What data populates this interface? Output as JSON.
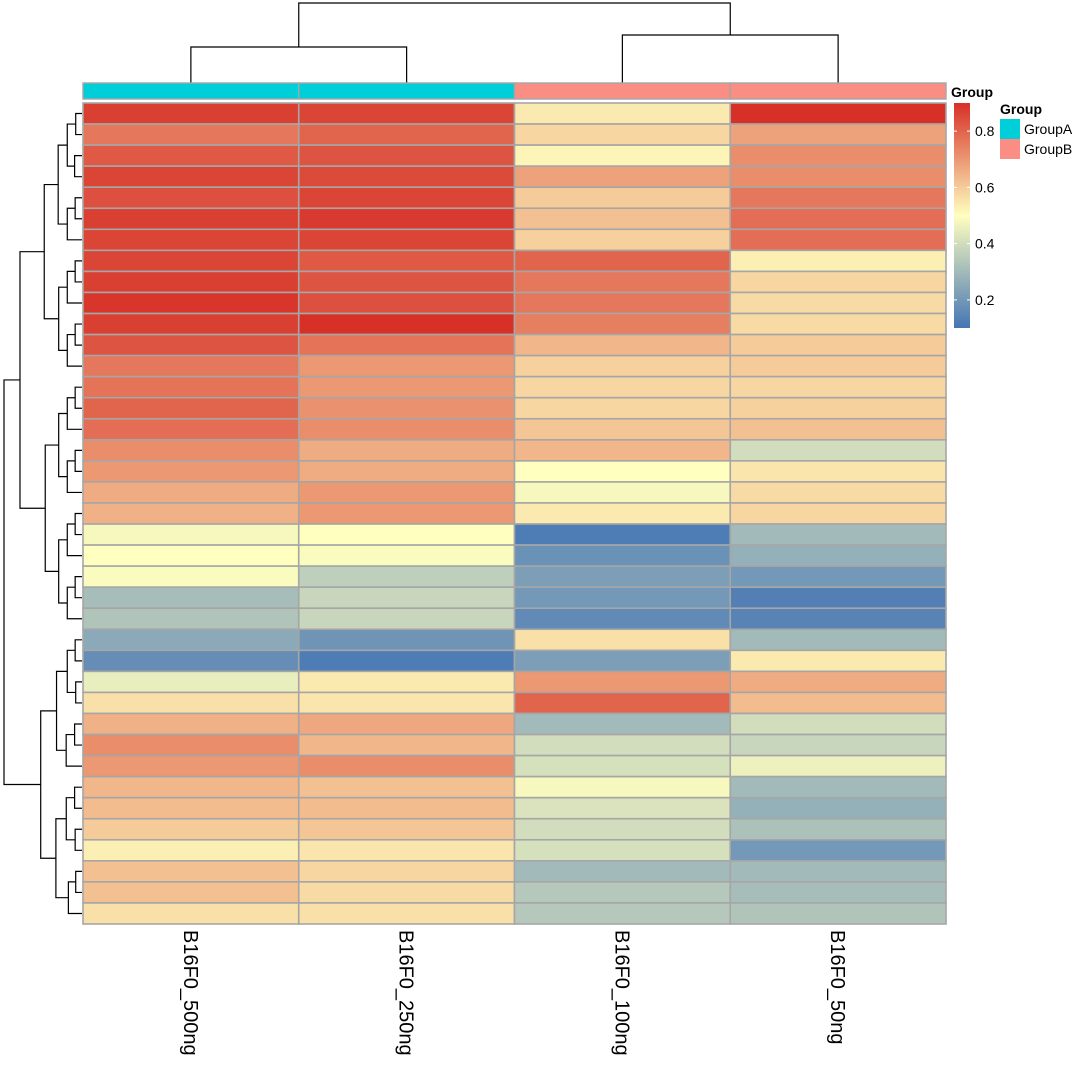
{
  "chart_data": {
    "type": "heatmap",
    "title": "",
    "columns": [
      "B16F0_500ng",
      "B16F0_250ng",
      "B16F0_100ng",
      "B16F0_50ng"
    ],
    "column_groups": [
      "GroupA",
      "GroupA",
      "GroupB",
      "GroupB"
    ],
    "annotation": {
      "track_label": "Group",
      "legend_title": "Group",
      "levels": [
        {
          "name": "GroupA",
          "color": "#00ced8"
        },
        {
          "name": "GroupB",
          "color": "#fa8e84"
        }
      ]
    },
    "color_scale": {
      "min": 0.1,
      "max": 0.9,
      "ticks": [
        0.2,
        0.4,
        0.6,
        0.8
      ],
      "tick_labels": [
        "0.2",
        "0.4",
        "0.6",
        "0.8"
      ],
      "low_color": "#4575b4",
      "mid_color": "#ffffbf",
      "high_color": "#d73027"
    },
    "values": [
      [
        0.87,
        0.86,
        0.54,
        0.9
      ],
      [
        0.76,
        0.8,
        0.58,
        0.68
      ],
      [
        0.82,
        0.83,
        0.52,
        0.72
      ],
      [
        0.86,
        0.85,
        0.68,
        0.72
      ],
      [
        0.84,
        0.86,
        0.6,
        0.76
      ],
      [
        0.87,
        0.88,
        0.62,
        0.78
      ],
      [
        0.86,
        0.86,
        0.59,
        0.78
      ],
      [
        0.86,
        0.82,
        0.8,
        0.53
      ],
      [
        0.87,
        0.83,
        0.76,
        0.58
      ],
      [
        0.89,
        0.84,
        0.76,
        0.57
      ],
      [
        0.87,
        0.9,
        0.75,
        0.57
      ],
      [
        0.83,
        0.77,
        0.64,
        0.6
      ],
      [
        0.76,
        0.7,
        0.59,
        0.6
      ],
      [
        0.77,
        0.7,
        0.58,
        0.58
      ],
      [
        0.8,
        0.71,
        0.58,
        0.59
      ],
      [
        0.78,
        0.72,
        0.61,
        0.62
      ],
      [
        0.72,
        0.66,
        0.64,
        0.4
      ],
      [
        0.7,
        0.66,
        0.5,
        0.55
      ],
      [
        0.66,
        0.7,
        0.48,
        0.57
      ],
      [
        0.65,
        0.7,
        0.54,
        0.58
      ],
      [
        0.48,
        0.5,
        0.12,
        0.3
      ],
      [
        0.5,
        0.49,
        0.18,
        0.27
      ],
      [
        0.49,
        0.36,
        0.22,
        0.2
      ],
      [
        0.31,
        0.38,
        0.2,
        0.13
      ],
      [
        0.33,
        0.38,
        0.16,
        0.14
      ],
      [
        0.25,
        0.19,
        0.56,
        0.3
      ],
      [
        0.17,
        0.12,
        0.22,
        0.54
      ],
      [
        0.45,
        0.54,
        0.7,
        0.66
      ],
      [
        0.56,
        0.55,
        0.8,
        0.63
      ],
      [
        0.65,
        0.67,
        0.3,
        0.4
      ],
      [
        0.72,
        0.64,
        0.4,
        0.38
      ],
      [
        0.7,
        0.72,
        0.41,
        0.46
      ],
      [
        0.64,
        0.62,
        0.48,
        0.3
      ],
      [
        0.63,
        0.63,
        0.42,
        0.27
      ],
      [
        0.6,
        0.61,
        0.4,
        0.32
      ],
      [
        0.53,
        0.55,
        0.41,
        0.2
      ],
      [
        0.62,
        0.58,
        0.3,
        0.3
      ],
      [
        0.62,
        0.57,
        0.34,
        0.31
      ],
      [
        0.56,
        0.56,
        0.34,
        0.33
      ]
    ],
    "column_dendrogram": {
      "merges": [
        [
          0,
          1,
          0.45
        ],
        [
          2,
          3,
          0.6
        ],
        [
          -1,
          -2,
          1.0
        ]
      ]
    },
    "row_dendrogram": {
      "main_split": [
        [
          0,
          24
        ],
        [
          25,
          38
        ]
      ]
    }
  }
}
